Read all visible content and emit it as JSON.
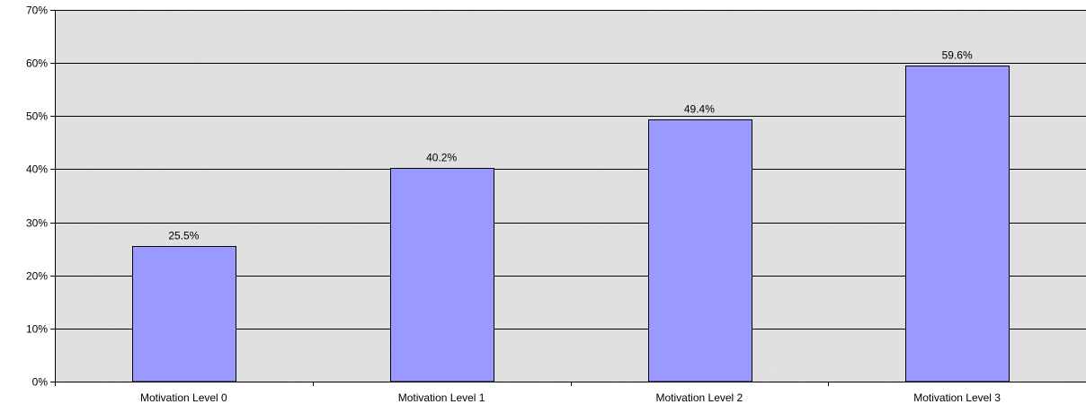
{
  "chart_data": {
    "type": "bar",
    "title": "",
    "xlabel": "",
    "ylabel": "",
    "categories": [
      "Motivation Level 0",
      "Motivation Level 1",
      "Motivation Level 2",
      "Motivation Level 3"
    ],
    "values": [
      25.5,
      40.2,
      49.4,
      59.6
    ],
    "data_labels": [
      "25.5%",
      "40.2%",
      "49.4%",
      "59.6%"
    ],
    "ylim": [
      0,
      70
    ],
    "yticks": [
      0,
      10,
      20,
      30,
      40,
      50,
      60,
      70
    ],
    "ytick_labels": [
      "0%",
      "10%",
      "20%",
      "30%",
      "40%",
      "50%",
      "60%",
      "70%"
    ],
    "grid": true,
    "legend": "none",
    "colors": {
      "bar": "#9999ff",
      "bar_outline": "#000000",
      "plot_background": "#e6e6e6",
      "gridline": "#000000"
    }
  }
}
